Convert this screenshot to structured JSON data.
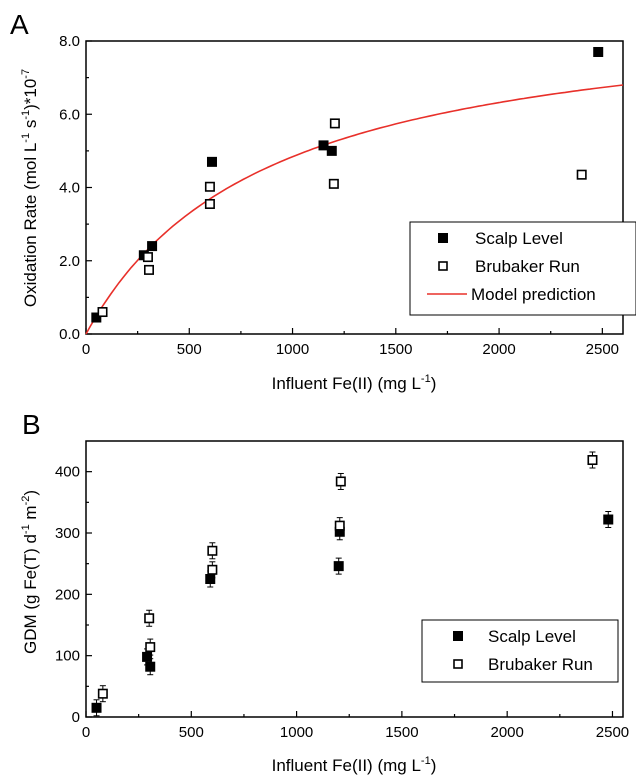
{
  "chart_data": [
    {
      "type": "scatter",
      "panel_label": "A",
      "xlabel": "Influent  Fe(II) (mg L",
      "xlabel_sup": "-1",
      "xlabel_close": ")",
      "ylabel": "Oxidation Rate (mol L",
      "ylabel_parts": [
        "Oxidation Rate (mol L",
        "-1",
        " s",
        "-1",
        ")*10",
        "-7"
      ],
      "xlim": [
        0,
        2600
      ],
      "ylim": [
        0,
        8
      ],
      "xticks": [
        0,
        500,
        1000,
        1500,
        2000,
        2500
      ],
      "xtick_labels": [
        "0",
        "500",
        "1000",
        "1500",
        "2000",
        "2500"
      ],
      "yticks": [
        0,
        2,
        4,
        6,
        8
      ],
      "ytick_labels": [
        "0.0",
        "2.0",
        "4.0",
        "6.0",
        "8.0"
      ],
      "legend_position": "right-middle",
      "series": [
        {
          "name": "Scalp Level",
          "marker": "filled-square",
          "color": "#000000",
          "points": [
            {
              "x": 50,
              "y": 0.45
            },
            {
              "x": 280,
              "y": 2.15
            },
            {
              "x": 320,
              "y": 2.4
            },
            {
              "x": 610,
              "y": 4.7
            },
            {
              "x": 1150,
              "y": 5.15
            },
            {
              "x": 1190,
              "y": 5.0
            },
            {
              "x": 2480,
              "y": 7.7
            }
          ]
        },
        {
          "name": "Brubaker Run",
          "marker": "open-square",
          "color": "#000000",
          "points": [
            {
              "x": 80,
              "y": 0.6
            },
            {
              "x": 300,
              "y": 2.1
            },
            {
              "x": 305,
              "y": 1.75
            },
            {
              "x": 600,
              "y": 4.02
            },
            {
              "x": 600,
              "y": 3.55
            },
            {
              "x": 1205,
              "y": 5.75
            },
            {
              "x": 1200,
              "y": 4.1
            },
            {
              "x": 2400,
              "y": 4.35
            }
          ]
        },
        {
          "name": "Model prediction",
          "marker": "line",
          "color": "#e8302a",
          "vmax": 9.1,
          "km": 880
        }
      ]
    },
    {
      "type": "scatter",
      "panel_label": "B",
      "xlabel": "Influent  Fe(II) (mg L",
      "xlabel_sup": "-1",
      "xlabel_close": ")",
      "ylabel_parts": [
        "GDM (g Fe(T) d",
        "-1",
        " m",
        "-2",
        ")"
      ],
      "xlim": [
        0,
        2550
      ],
      "ylim": [
        0,
        450
      ],
      "xticks": [
        0,
        500,
        1000,
        1500,
        2000,
        2500
      ],
      "xtick_labels": [
        "0",
        "500",
        "1000",
        "1500",
        "2000",
        "2500"
      ],
      "yticks": [
        0,
        100,
        200,
        300,
        400
      ],
      "ytick_labels": [
        "0",
        "100",
        "200",
        "300",
        "400"
      ],
      "legend_position": "right-lower",
      "series": [
        {
          "name": "Scalp Level",
          "marker": "filled-square",
          "color": "#000000",
          "points": [
            {
              "x": 50,
              "y": 15
            },
            {
              "x": 290,
              "y": 98
            },
            {
              "x": 305,
              "y": 82
            },
            {
              "x": 590,
              "y": 225
            },
            {
              "x": 1200,
              "y": 246
            },
            {
              "x": 1205,
              "y": 302
            },
            {
              "x": 2480,
              "y": 322
            }
          ]
        },
        {
          "name": "Brubaker Run",
          "marker": "open-square",
          "color": "#000000",
          "points": [
            {
              "x": 80,
              "y": 38
            },
            {
              "x": 300,
              "y": 161
            },
            {
              "x": 305,
              "y": 114
            },
            {
              "x": 600,
              "y": 271
            },
            {
              "x": 600,
              "y": 240
            },
            {
              "x": 1205,
              "y": 312
            },
            {
              "x": 1210,
              "y": 384
            },
            {
              "x": 2405,
              "y": 419
            }
          ]
        }
      ]
    }
  ]
}
